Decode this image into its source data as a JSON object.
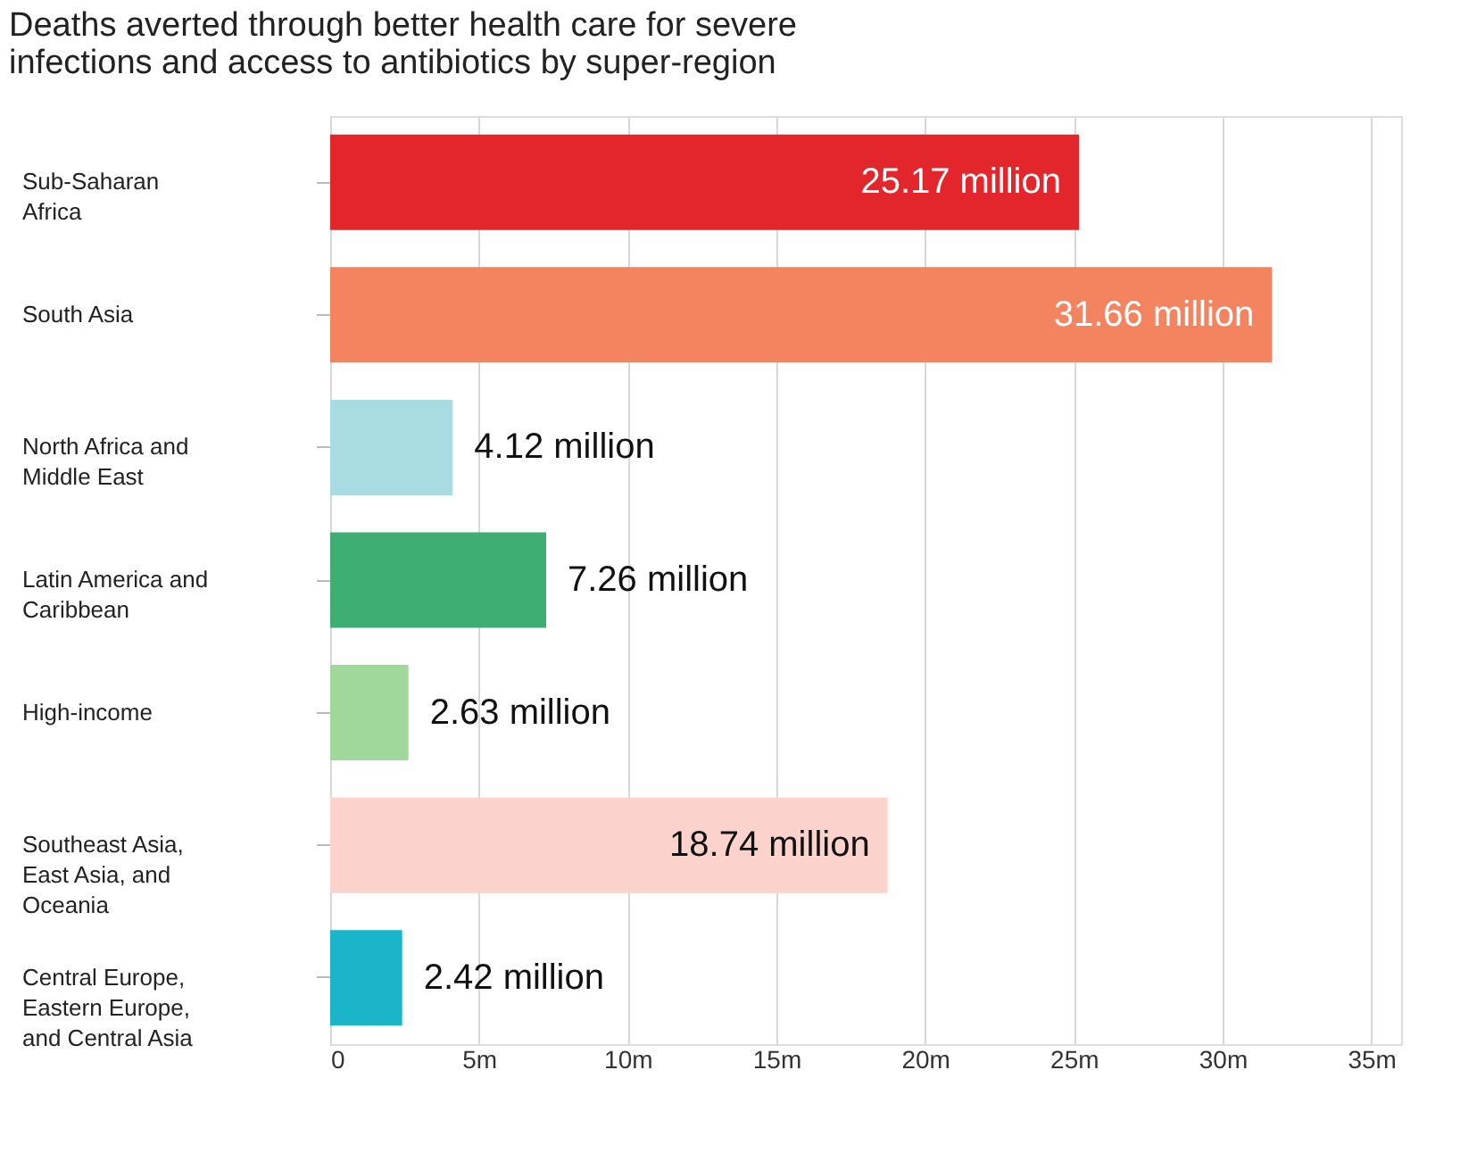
{
  "chart_data": {
    "type": "bar",
    "orientation": "horizontal",
    "title": "Deaths averted through better health care for severe infections and access to antibiotics by super-region",
    "categories": [
      "Sub-Saharan Africa",
      "South Asia",
      "North Africa and Middle East",
      "Latin America and Caribbean",
      "High-income",
      "Southeast Asia, East Asia, and Oceania",
      "Central Europe, Eastern Europe, and Central Asia"
    ],
    "values": [
      25.17,
      31.66,
      4.12,
      7.26,
      2.63,
      18.74,
      2.42
    ],
    "colors": [
      "#e3262b",
      "#f4845f",
      "#a8dce0",
      "#3fae72",
      "#9fd89a",
      "#fbd3cc",
      "#1bb5c9"
    ],
    "value_labels": [
      "25.17 million",
      "31.66 million",
      "4.12 million",
      "7.26 million",
      "2.63 million",
      "18.74 million",
      "2.42 million"
    ],
    "xlim": [
      0,
      36
    ],
    "xticks": [
      0,
      {
        "value": 5,
        "label": "5m"
      },
      {
        "value": 10,
        "label": "10m"
      },
      {
        "value": 15,
        "label": "15m"
      },
      {
        "value": 20,
        "label": "20m"
      },
      {
        "value": 25,
        "label": "25m"
      },
      {
        "value": 30,
        "label": "30m"
      },
      {
        "value": 35,
        "label": "35m"
      }
    ],
    "grid": "x"
  }
}
